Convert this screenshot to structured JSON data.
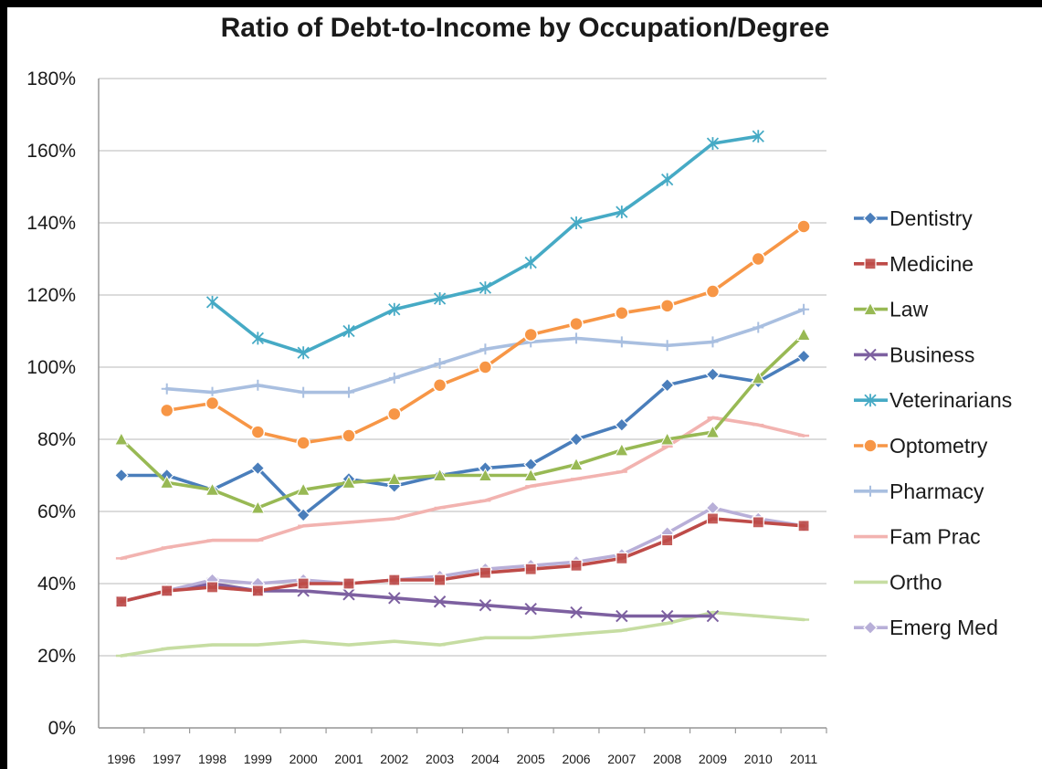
{
  "chart_data": {
    "type": "line",
    "title": "Ratio of Debt-to-Income by Occupation/Degree",
    "xlabel": "",
    "ylabel": "",
    "x": [
      "1996",
      "1997",
      "1998",
      "1999",
      "2000",
      "2001",
      "2002",
      "2003",
      "2004",
      "2005",
      "2006",
      "2007",
      "2008",
      "2009",
      "2010",
      "2011"
    ],
    "ylim": [
      0,
      180
    ],
    "yticks": [
      0,
      20,
      40,
      60,
      80,
      100,
      120,
      140,
      160,
      180
    ],
    "ytick_labels": [
      "0%",
      "20%",
      "40%",
      "60%",
      "80%",
      "100%",
      "120%",
      "140%",
      "160%",
      "180%"
    ],
    "grid": true,
    "legend_position": "right",
    "series": [
      {
        "name": "Dentistry",
        "color": "#4a7ebb",
        "marker": "diamond",
        "values": [
          70,
          70,
          66,
          72,
          59,
          69,
          67,
          70,
          72,
          73,
          80,
          84,
          95,
          98,
          96,
          103
        ]
      },
      {
        "name": "Medicine",
        "color": "#be4b48",
        "marker": "square",
        "values": [
          35,
          38,
          39,
          38,
          40,
          40,
          41,
          41,
          43,
          44,
          45,
          47,
          52,
          58,
          57,
          56
        ]
      },
      {
        "name": "Law",
        "color": "#98b954",
        "marker": "triangle",
        "values": [
          80,
          68,
          66,
          61,
          66,
          68,
          69,
          70,
          70,
          70,
          73,
          77,
          80,
          82,
          97,
          109
        ]
      },
      {
        "name": "Business",
        "color": "#7d60a0",
        "marker": "x",
        "values": [
          35,
          38,
          40,
          38,
          38,
          37,
          36,
          35,
          34,
          33,
          32,
          31,
          31,
          31,
          null,
          null
        ]
      },
      {
        "name": "Veterinarians",
        "color": "#46aac5",
        "marker": "star",
        "values": [
          null,
          null,
          118,
          108,
          104,
          110,
          116,
          119,
          122,
          129,
          140,
          143,
          152,
          162,
          164,
          null
        ]
      },
      {
        "name": "Optometry",
        "color": "#f79646",
        "marker": "circle",
        "values": [
          null,
          88,
          90,
          82,
          79,
          81,
          87,
          95,
          100,
          109,
          112,
          115,
          117,
          121,
          130,
          139
        ]
      },
      {
        "name": "Pharmacy",
        "color": "#a9bfe0",
        "marker": "plus",
        "values": [
          null,
          94,
          93,
          95,
          93,
          93,
          97,
          101,
          105,
          107,
          108,
          107,
          106,
          107,
          111,
          116
        ]
      },
      {
        "name": "Fam Prac",
        "color": "#f2b3b0",
        "marker": "dash",
        "values": [
          47,
          50,
          52,
          52,
          56,
          57,
          58,
          61,
          63,
          67,
          69,
          71,
          78,
          86,
          84,
          81
        ]
      },
      {
        "name": "Ortho",
        "color": "#c6dda2",
        "marker": "dash",
        "values": [
          20,
          22,
          23,
          23,
          24,
          23,
          24,
          23,
          25,
          25,
          26,
          27,
          29,
          32,
          31,
          30
        ]
      },
      {
        "name": "Emerg Med",
        "color": "#b8afd8",
        "marker": "diamond",
        "values": [
          35,
          38,
          41,
          40,
          41,
          40,
          41,
          42,
          44,
          45,
          46,
          48,
          54,
          61,
          58,
          56
        ]
      }
    ]
  }
}
